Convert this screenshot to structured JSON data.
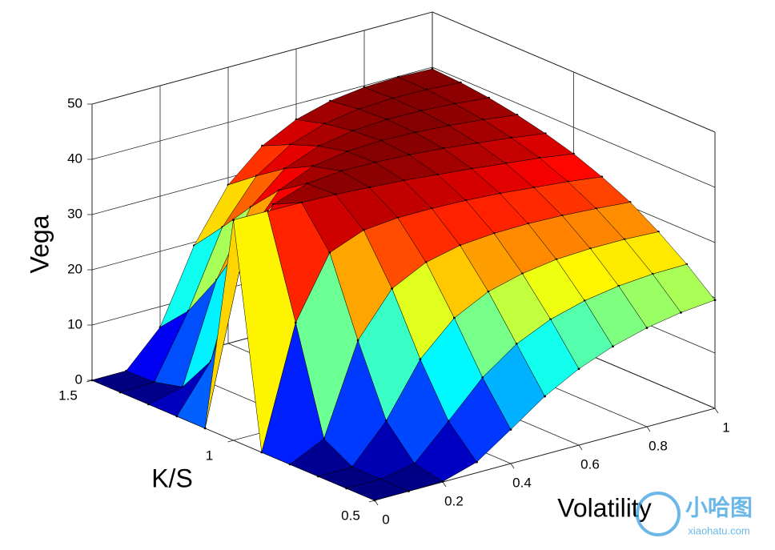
{
  "chart_data": {
    "type": "surface",
    "xlabel": "Volatility",
    "ylabel": "K/S",
    "zlabel": "Vega",
    "x": [
      0,
      0.1,
      0.2,
      0.3,
      0.4,
      0.5,
      0.6,
      0.7,
      0.8,
      0.9,
      1
    ],
    "y": [
      0.5,
      0.6,
      0.7,
      0.8,
      0.9,
      1,
      1.1,
      1.2,
      1.3,
      1.4,
      1.5
    ],
    "z": [
      [
        0,
        0,
        0.07,
        1.93,
        6.16,
        10.5,
        13.8,
        16.2,
        17.9,
        19.0,
        19.6
      ],
      [
        0,
        0,
        1.18,
        7.17,
        13.4,
        17.8,
        20.6,
        22.3,
        23.3,
        23.8,
        23.9
      ],
      [
        0,
        0.06,
        6.74,
        16.2,
        22.0,
        25.1,
        26.7,
        27.6,
        27.9,
        27.9,
        27.6
      ],
      [
        0,
        2.96,
        19.1,
        26.8,
        29.9,
        31.3,
        31.8,
        31.9,
        31.7,
        31.3,
        30.8
      ],
      [
        0,
        21.8,
        32.8,
        35.2,
        35.8,
        35.8,
        35.6,
        35.2,
        34.6,
        34.0,
        33.2
      ],
      [
        39.9,
        39.8,
        39.7,
        39.5,
        39.1,
        38.7,
        38.1,
        37.5,
        36.8,
        36.1,
        35.2
      ],
      [
        0,
        26.6,
        37.2,
        39.3,
        39.9,
        39.8,
        39.5,
        39.0,
        38.3,
        37.6,
        36.7
      ],
      [
        0,
        8.33,
        28.7,
        35.9,
        38.6,
        39.6,
        39.9,
        39.7,
        39.3,
        38.7,
        37.9
      ],
      [
        0,
        1.47,
        19.2,
        30.7,
        36.0,
        38.4,
        39.5,
        39.9,
        39.8,
        39.4,
        38.8
      ],
      [
        0,
        0.17,
        11.4,
        24.9,
        32.5,
        36.5,
        38.6,
        39.6,
        39.9,
        39.8,
        39.4
      ],
      [
        0,
        0.01,
        6.27,
        19.4,
        28.7,
        34.1,
        37.2,
        38.9,
        39.7,
        39.9,
        39.7
      ]
    ],
    "xlim": [
      0,
      1
    ],
    "xticks": [
      0,
      0.2,
      0.4,
      0.6,
      0.8,
      1
    ],
    "ylim": [
      0.5,
      1.5
    ],
    "yticks": [
      0.5,
      1,
      1.5
    ],
    "zlim": [
      0,
      50
    ],
    "zticks": [
      0,
      10,
      20,
      30,
      40,
      50
    ],
    "colormap": "jet",
    "grid": true
  },
  "watermark": {
    "title": "小哈图",
    "url": "xiaohatu.com"
  }
}
